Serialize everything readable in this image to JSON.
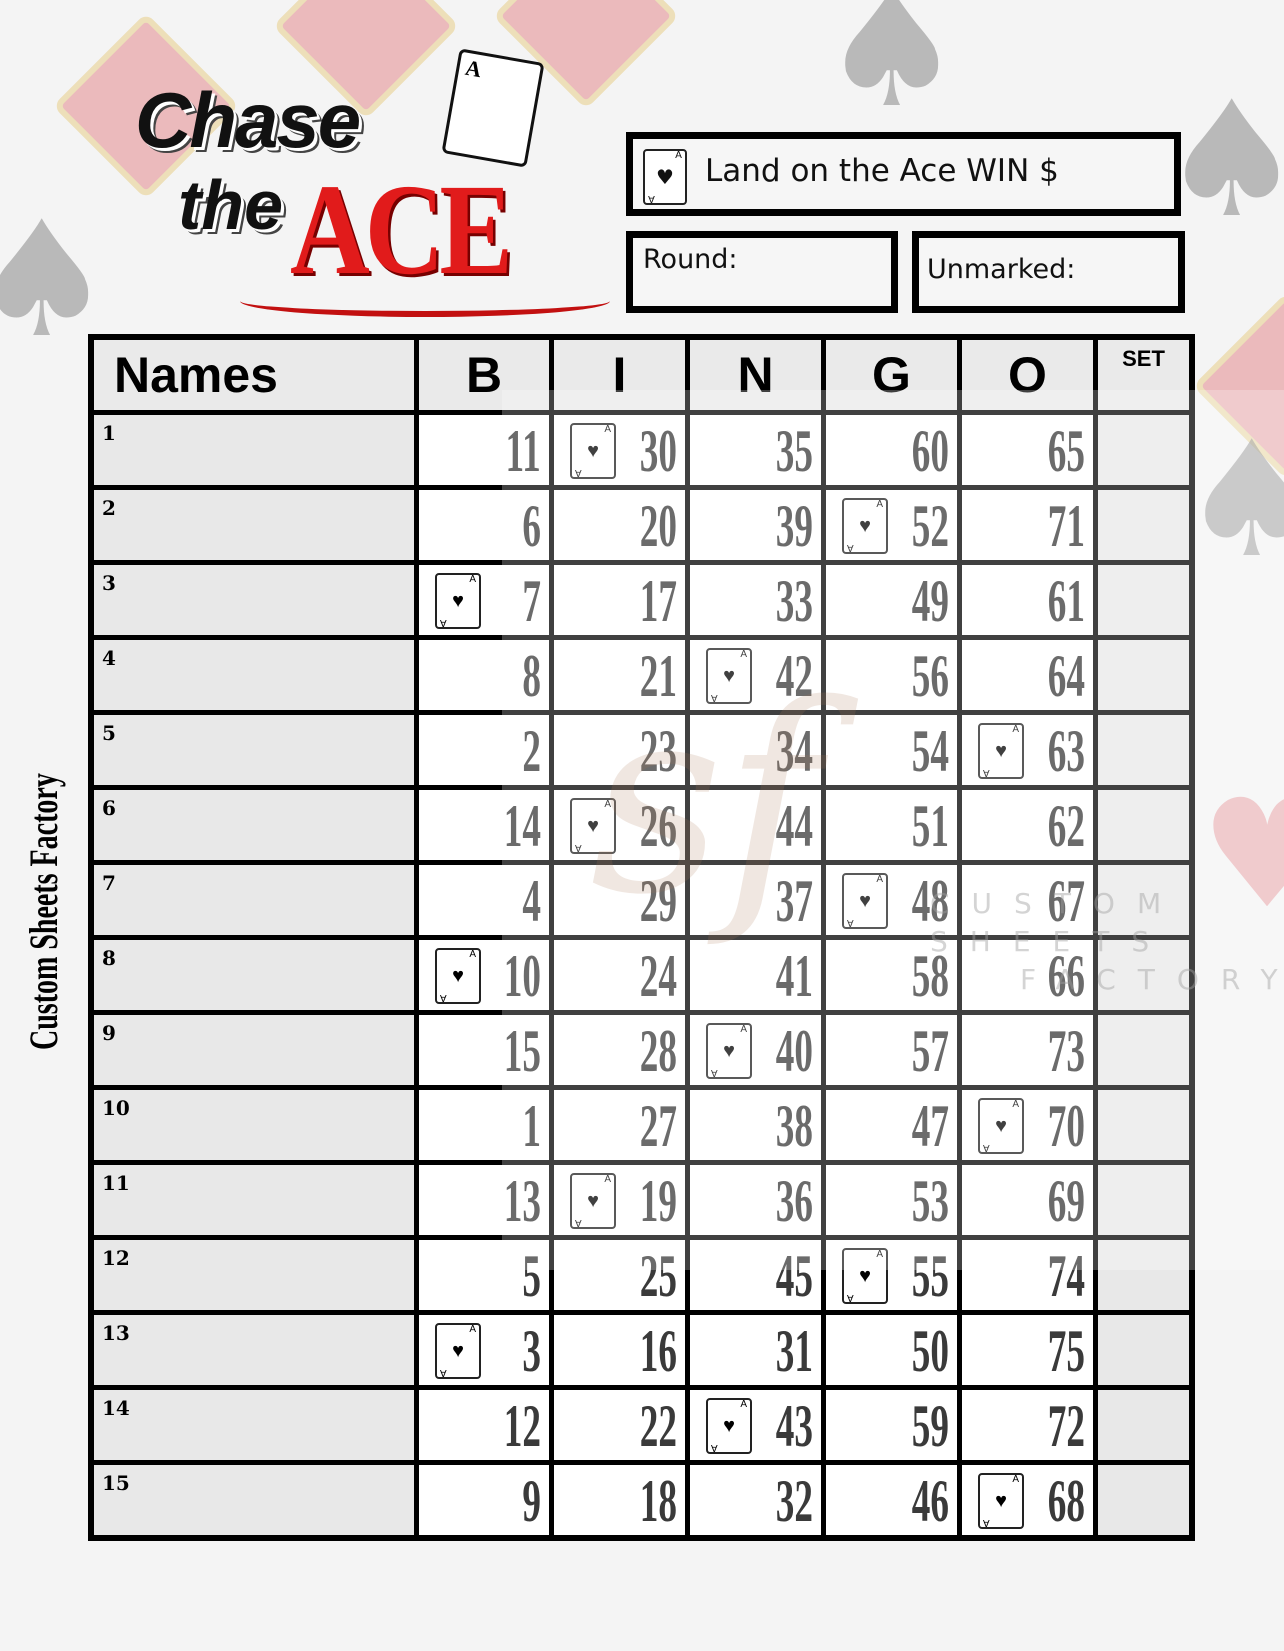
{
  "logo": {
    "line1": "Chase",
    "line2": "the",
    "line3": "ACE",
    "card_letter": "A"
  },
  "prize_box": {
    "icon": "ace-of-hearts-icon",
    "label": "Land on the Ace WIN $"
  },
  "round_box": {
    "label": "Round:"
  },
  "unmarked_box": {
    "label": "Unmarked:"
  },
  "side_label": "Custom Sheets Factory",
  "watermark": {
    "mark": "sf",
    "line1": "CUSTOM SHEETS",
    "line2": "FACTORY"
  },
  "table": {
    "headers": [
      "Names",
      "B",
      "I",
      "N",
      "G",
      "O",
      "SET"
    ],
    "rows": [
      {
        "label": "1",
        "numbers": [
          11,
          30,
          35,
          60,
          65
        ],
        "ace_column": 1
      },
      {
        "label": "2",
        "numbers": [
          6,
          20,
          39,
          52,
          71
        ],
        "ace_column": 3
      },
      {
        "label": "3",
        "numbers": [
          7,
          17,
          33,
          49,
          61
        ],
        "ace_column": 0
      },
      {
        "label": "4",
        "numbers": [
          8,
          21,
          42,
          56,
          64
        ],
        "ace_column": 2
      },
      {
        "label": "5",
        "numbers": [
          2,
          23,
          34,
          54,
          63
        ],
        "ace_column": 4
      },
      {
        "label": "6",
        "numbers": [
          14,
          26,
          44,
          51,
          62
        ],
        "ace_column": 1
      },
      {
        "label": "7",
        "numbers": [
          4,
          29,
          37,
          48,
          67
        ],
        "ace_column": 3
      },
      {
        "label": "8",
        "numbers": [
          10,
          24,
          41,
          58,
          66
        ],
        "ace_column": 0
      },
      {
        "label": "9",
        "numbers": [
          15,
          28,
          40,
          57,
          73
        ],
        "ace_column": 2
      },
      {
        "label": "10",
        "numbers": [
          1,
          27,
          38,
          47,
          70
        ],
        "ace_column": 4
      },
      {
        "label": "11",
        "numbers": [
          13,
          19,
          36,
          53,
          69
        ],
        "ace_column": 1
      },
      {
        "label": "12",
        "numbers": [
          5,
          25,
          45,
          55,
          74
        ],
        "ace_column": 3
      },
      {
        "label": "13",
        "numbers": [
          3,
          16,
          31,
          50,
          75
        ],
        "ace_column": 0
      },
      {
        "label": "14",
        "numbers": [
          12,
          22,
          43,
          59,
          72
        ],
        "ace_column": 2
      },
      {
        "label": "15",
        "numbers": [
          9,
          18,
          32,
          46,
          68
        ],
        "ace_column": 4
      }
    ]
  },
  "colors": {
    "ace_red": "#e11b1b",
    "grid": "#000000",
    "number": "#3a3a3a"
  }
}
